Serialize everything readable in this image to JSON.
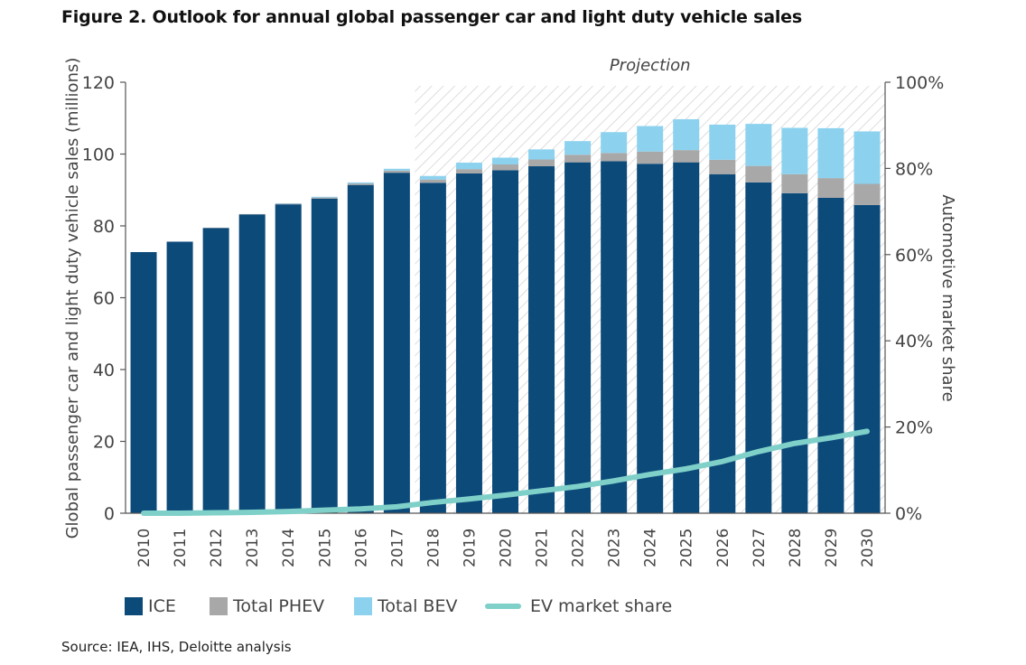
{
  "figure_title": "Figure 2. Outlook for annual global passenger car and light duty vehicle sales",
  "source": "Source: IEA, IHS, Deloitte analysis",
  "colors": {
    "ice": "#0c4a7a",
    "phev": "#a8a8a8",
    "bev": "#8cd2ef",
    "share": "#7fd0c8",
    "axis": "#555555",
    "hatch": "#cfcfcf"
  },
  "chart_data": {
    "type": "bar",
    "stacked": true,
    "title": "Figure 2. Outlook for annual global passenger car and light duty vehicle sales",
    "ylabel": "Global passenger car and light duty vehicle sales (millions)",
    "y2label": "Automotive market share",
    "ylim": [
      0,
      120
    ],
    "y2lim": [
      0,
      100
    ],
    "yticks": [
      "0",
      "20",
      "40",
      "60",
      "80",
      "100",
      "120"
    ],
    "y2ticks": [
      "0%",
      "20%",
      "40%",
      "60%",
      "80%",
      "100%"
    ],
    "projection_label": "Projection",
    "projection_start": "2018",
    "categories": [
      "2010",
      "2011",
      "2012",
      "2013",
      "2014",
      "2015",
      "2016",
      "2017",
      "2018",
      "2019",
      "2020",
      "2021",
      "2022",
      "2023",
      "2024",
      "2025",
      "2026",
      "2027",
      "2028",
      "2029",
      "2030"
    ],
    "series": [
      {
        "name": "ICE",
        "values": [
          72.7,
          75.6,
          79.4,
          83.2,
          86.0,
          87.6,
          91.4,
          94.8,
          92.0,
          94.6,
          95.5,
          96.6,
          97.7,
          98.0,
          97.3,
          97.7,
          94.4,
          92.1,
          89.1,
          87.8,
          85.8
        ]
      },
      {
        "name": "Total PHEV",
        "values": [
          0,
          0,
          0.1,
          0.1,
          0.2,
          0.3,
          0.4,
          0.6,
          0.9,
          1.2,
          1.6,
          1.9,
          2.1,
          2.3,
          3.4,
          3.4,
          4.0,
          4.6,
          5.3,
          5.5,
          5.9
        ]
      },
      {
        "name": "Total BEV",
        "values": [
          0,
          0,
          0,
          0,
          0.1,
          0.2,
          0.3,
          0.5,
          1.0,
          1.8,
          1.9,
          2.8,
          3.8,
          5.8,
          7.1,
          8.6,
          9.8,
          11.7,
          12.9,
          13.9,
          14.6
        ]
      }
    ],
    "line": {
      "name": "EV market share",
      "values_percent": [
        0,
        0,
        0.1,
        0.2,
        0.4,
        0.7,
        1.0,
        1.5,
        2.5,
        3.3,
        4.2,
        5.2,
        6.2,
        7.5,
        9.0,
        10.3,
        12.0,
        14.3,
        16.2,
        17.5,
        19.0
      ]
    },
    "legend_position": "bottom"
  }
}
